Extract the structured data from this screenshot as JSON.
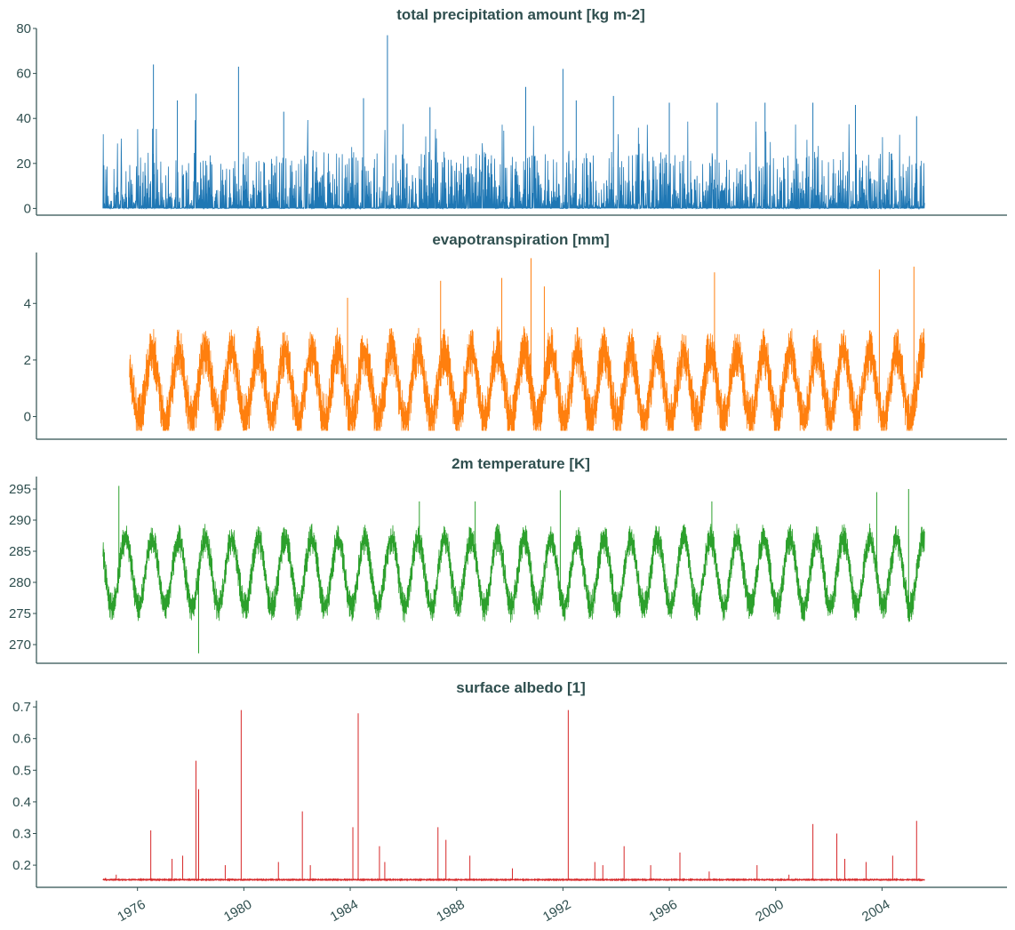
{
  "chart_data": [
    {
      "type": "line",
      "title": "total precipitation amount [kg m-2]",
      "color": "#1f77b4",
      "yticks": [
        0,
        20,
        40,
        60,
        80
      ],
      "ylim": [
        -3,
        80
      ],
      "xlim": [
        1972.2,
        2008.7
      ],
      "series": [
        {
          "x_start": 1974.7,
          "x_end": 2005.6,
          "min": 0,
          "baseline": 3,
          "noise": 6,
          "seasonal_amp": 0,
          "peaks": [
            [
              1976.6,
              64
            ],
            [
              1977.5,
              48
            ],
            [
              1978.2,
              51
            ],
            [
              1979.8,
              63
            ],
            [
              1981.5,
              43
            ],
            [
              1984.5,
              49
            ],
            [
              1985.4,
              77
            ],
            [
              1987.0,
              45
            ],
            [
              1990.6,
              54
            ],
            [
              1992.0,
              62
            ],
            [
              1992.5,
              48
            ],
            [
              1993.9,
              50
            ],
            [
              1996.0,
              47
            ],
            [
              1997.8,
              47
            ],
            [
              1999.6,
              47
            ],
            [
              2001.4,
              47
            ],
            [
              2003.0,
              46
            ],
            [
              2005.3,
              41
            ]
          ]
        }
      ]
    },
    {
      "type": "line",
      "title": "evapotranspiration [mm]",
      "color": "#ff7f0e",
      "yticks": [
        0,
        2,
        4
      ],
      "ylim": [
        -0.8,
        5.8
      ],
      "xlim": [
        1972.2,
        2008.7
      ],
      "series": [
        {
          "x_start": 1975.7,
          "x_end": 2005.6,
          "min": -0.5,
          "baseline": 1.1,
          "noise": 0.9,
          "seasonal_amp": 1.2,
          "peaks": [
            [
              1983.9,
              4.2
            ],
            [
              1987.4,
              4.8
            ],
            [
              1989.7,
              4.9
            ],
            [
              1990.8,
              5.6
            ],
            [
              1991.3,
              4.6
            ],
            [
              1997.7,
              5.1
            ],
            [
              2003.9,
              5.2
            ],
            [
              2005.2,
              5.3
            ]
          ]
        }
      ]
    },
    {
      "type": "line",
      "title": "2m temperature [K]",
      "color": "#2ca02c",
      "yticks": [
        270,
        275,
        280,
        285,
        290,
        295
      ],
      "ylim": [
        267,
        297
      ],
      "xlim": [
        1972.2,
        2008.7
      ],
      "series": [
        {
          "x_start": 1974.7,
          "x_end": 2005.6,
          "min": 268.6,
          "baseline": 281.5,
          "noise": 2.5,
          "seasonal_amp": 5.5,
          "peaks": [
            [
              1975.3,
              295.5
            ],
            [
              1976.5,
              288
            ],
            [
              1978.3,
              268.6
            ],
            [
              1986.6,
              293
            ],
            [
              1988.7,
              293
            ],
            [
              1991.9,
              294.8
            ],
            [
              1997.6,
              293
            ],
            [
              2003.8,
              294.5
            ],
            [
              2005.0,
              295
            ]
          ]
        }
      ]
    },
    {
      "type": "line",
      "title": "surface albedo [1]",
      "color": "#d62728",
      "yticks": [
        0.2,
        0.3,
        0.4,
        0.5,
        0.6,
        0.7
      ],
      "ylim": [
        0.13,
        0.72
      ],
      "xlim": [
        1972.2,
        2008.7
      ],
      "xtick_labels": [
        "1976",
        "1980",
        "1984",
        "1988",
        "1992",
        "1996",
        "2000",
        "2004"
      ],
      "xticks": [
        1976,
        1980,
        1984,
        1988,
        1992,
        1996,
        2000,
        2004
      ],
      "series": [
        {
          "x_start": 1974.7,
          "x_end": 2005.6,
          "min": 0.15,
          "baseline": 0.154,
          "noise": 0.002,
          "seasonal_amp": 0,
          "peaks": [
            [
              1974.8,
              0.16
            ],
            [
              1975.2,
              0.17
            ],
            [
              1976.5,
              0.31
            ],
            [
              1977.3,
              0.22
            ],
            [
              1977.7,
              0.23
            ],
            [
              1978.2,
              0.53
            ],
            [
              1978.3,
              0.44
            ],
            [
              1979.3,
              0.2
            ],
            [
              1979.9,
              0.69
            ],
            [
              1981.3,
              0.21
            ],
            [
              1982.2,
              0.37
            ],
            [
              1982.5,
              0.2
            ],
            [
              1984.1,
              0.32
            ],
            [
              1984.3,
              0.68
            ],
            [
              1985.1,
              0.26
            ],
            [
              1985.3,
              0.21
            ],
            [
              1987.3,
              0.32
            ],
            [
              1987.6,
              0.28
            ],
            [
              1988.5,
              0.23
            ],
            [
              1990.1,
              0.19
            ],
            [
              1992.2,
              0.69
            ],
            [
              1993.2,
              0.21
            ],
            [
              1993.5,
              0.2
            ],
            [
              1994.3,
              0.26
            ],
            [
              1995.3,
              0.2
            ],
            [
              1996.4,
              0.24
            ],
            [
              1997.5,
              0.18
            ],
            [
              1999.3,
              0.2
            ],
            [
              2000.5,
              0.17
            ],
            [
              2001.4,
              0.33
            ],
            [
              2002.3,
              0.3
            ],
            [
              2002.6,
              0.22
            ],
            [
              2003.4,
              0.21
            ],
            [
              2004.4,
              0.23
            ],
            [
              2005.3,
              0.34
            ]
          ]
        }
      ]
    }
  ]
}
